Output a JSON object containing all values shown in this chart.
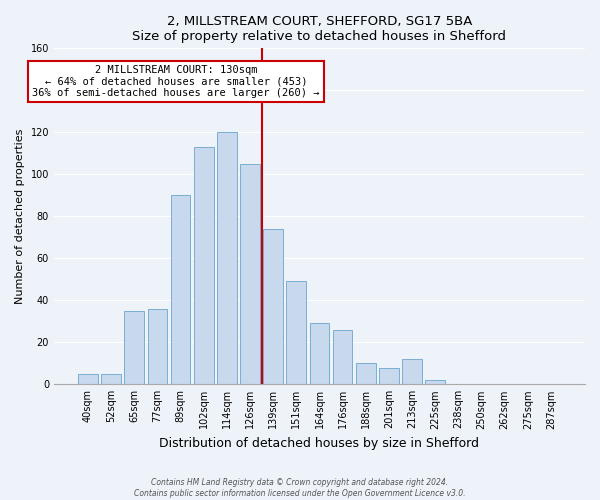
{
  "title1": "2, MILLSTREAM COURT, SHEFFORD, SG17 5BA",
  "title2": "Size of property relative to detached houses in Shefford",
  "xlabel": "Distribution of detached houses by size in Shefford",
  "ylabel": "Number of detached properties",
  "bar_labels": [
    "40sqm",
    "52sqm",
    "65sqm",
    "77sqm",
    "89sqm",
    "102sqm",
    "114sqm",
    "126sqm",
    "139sqm",
    "151sqm",
    "164sqm",
    "176sqm",
    "188sqm",
    "201sqm",
    "213sqm",
    "225sqm",
    "238sqm",
    "250sqm",
    "262sqm",
    "275sqm",
    "287sqm"
  ],
  "bar_values": [
    5,
    5,
    35,
    36,
    90,
    113,
    120,
    105,
    74,
    49,
    29,
    26,
    10,
    8,
    12,
    2,
    0,
    0,
    0,
    0,
    0
  ],
  "bar_color": "#c8d9ee",
  "bar_edge_color": "#7aaed4",
  "vline_color": "#cc0000",
  "ylim": [
    0,
    160
  ],
  "yticks": [
    0,
    20,
    40,
    60,
    80,
    100,
    120,
    140,
    160
  ],
  "annotation_title": "2 MILLSTREAM COURT: 130sqm",
  "annotation_line1": "← 64% of detached houses are smaller (453)",
  "annotation_line2": "36% of semi-detached houses are larger (260) →",
  "annotation_box_color": "#ffffff",
  "annotation_box_edge": "#cc0000",
  "footer1": "Contains HM Land Registry data © Crown copyright and database right 2024.",
  "footer2": "Contains public sector information licensed under the Open Government Licence v3.0.",
  "bg_color": "#eef2f9",
  "plot_bg_color": "#eef2f9",
  "grid_color": "#ffffff",
  "title1_fontsize": 9.5,
  "title2_fontsize": 9.5,
  "ylabel_fontsize": 8,
  "xlabel_fontsize": 9,
  "tick_fontsize": 7,
  "vline_bar_index": 7
}
